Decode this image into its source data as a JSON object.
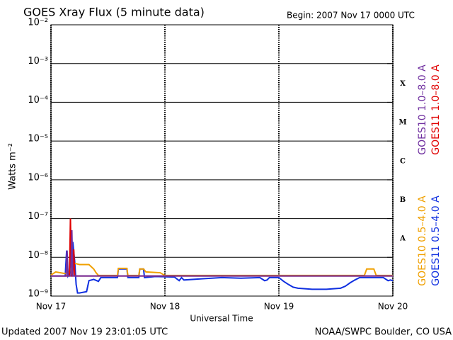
{
  "chart_data": {
    "type": "line",
    "title": "GOES Xray Flux (5 minute data)",
    "subtitle": "Begin:  2007 Nov 17 0000 UTC",
    "x_label": "Universal Time",
    "y_label": "Watts m⁻²",
    "footer_left": "Updated 2007 Nov 19 23:01:05 UTC",
    "footer_right": "NOAA/SWPC Boulder, CO USA",
    "log_y": true,
    "grid": true,
    "xlim": [
      0,
      72
    ],
    "xticks": [
      {
        "value": 0,
        "label": "Nov 17"
      },
      {
        "value": 24,
        "label": "Nov 18"
      },
      {
        "value": 48,
        "label": "Nov 19"
      },
      {
        "value": 72,
        "label": "Nov 20"
      }
    ],
    "ylim": [
      1e-09,
      0.01
    ],
    "yticks": [
      {
        "value": 1e-09,
        "label": "10⁻⁹"
      },
      {
        "value": 1e-08,
        "label": "10⁻⁸"
      },
      {
        "value": 1e-07,
        "label": "10⁻⁷"
      },
      {
        "value": 1e-06,
        "label": "10⁻⁶"
      },
      {
        "value": 1e-05,
        "label": "10⁻⁵"
      },
      {
        "value": 0.0001,
        "label": "10⁻⁴"
      },
      {
        "value": 0.001,
        "label": "10⁻³"
      },
      {
        "value": 0.01,
        "label": "10⁻²"
      }
    ],
    "flare_classes": [
      {
        "label": "X",
        "value": 0.0003
      },
      {
        "label": "M",
        "value": 3e-05
      },
      {
        "label": "C",
        "value": 3e-06
      },
      {
        "label": "B",
        "value": 3e-07
      },
      {
        "label": "A",
        "value": 3e-08
      }
    ],
    "series": [
      {
        "name": "GOES10 1.0–8.0 A",
        "color": "#7030a0",
        "x": [
          0,
          3.2,
          3.4,
          3.6,
          4.2,
          4.4,
          4.6,
          72
        ],
        "values": [
          3.3e-09,
          3.3e-09,
          1.5e-08,
          3.3e-09,
          3.3e-09,
          5e-08,
          3.3e-09,
          3.3e-09
        ]
      },
      {
        "name": "GOES11 1.0–8.0 A",
        "color": "#e00000",
        "x": [
          0,
          3.9,
          4.1,
          4.3,
          4.6,
          4.8,
          5,
          72
        ],
        "values": [
          3.3e-09,
          3.3e-09,
          1e-07,
          3.3e-09,
          3.3e-09,
          1.6e-08,
          3.3e-09,
          3.3e-09
        ]
      },
      {
        "name": "GOES10 0.5–4.0 A",
        "color": "#f0a000",
        "x": [
          0,
          1,
          2,
          3,
          4,
          4.5,
          5,
          6,
          8,
          9,
          9.5,
          10,
          14,
          14.2,
          16,
          16.2,
          18.5,
          18.7,
          19.5,
          20,
          23,
          24,
          66,
          66.5,
          68,
          68.5,
          72
        ],
        "values": [
          3.5e-09,
          4.2e-09,
          4e-09,
          3.8e-09,
          4.5e-09,
          6.5e-09,
          7e-09,
          6.5e-09,
          6.5e-09,
          5e-09,
          4e-09,
          3.4e-09,
          3.4e-09,
          5.2e-09,
          5.2e-09,
          3.4e-09,
          3.4e-09,
          5e-09,
          5e-09,
          4.2e-09,
          4e-09,
          3.4e-09,
          3.4e-09,
          5e-09,
          5e-09,
          3.4e-09,
          3.4e-09
        ]
      },
      {
        "name": "GOES11 0.5–4.0 A",
        "color": "#1030e0",
        "x": [
          0,
          3,
          3.3,
          3.6,
          4,
          4.6,
          5,
          5.3,
          5.6,
          6,
          7.5,
          8,
          9,
          10,
          10.5,
          11,
          14,
          14.2,
          16,
          16.2,
          18.5,
          18.7,
          19.5,
          19.7,
          22,
          26,
          27,
          27.5,
          28,
          32,
          36,
          40,
          44,
          45,
          45.5,
          46,
          48,
          49,
          50,
          51,
          52,
          55,
          58,
          61,
          62,
          63,
          64,
          65,
          68,
          70,
          71,
          71.5,
          72
        ],
        "values": [
          3.3e-09,
          3.3e-09,
          1.5e-08,
          3.3e-09,
          4e-09,
          2.5e-08,
          8e-09,
          2e-09,
          1.2e-09,
          1.2e-09,
          1.3e-09,
          2.5e-09,
          2.7e-09,
          2.4e-09,
          3e-09,
          3e-09,
          3e-09,
          5e-09,
          5e-09,
          3e-09,
          3e-09,
          5e-09,
          5e-09,
          3e-09,
          3.2e-09,
          3.1e-09,
          2.5e-09,
          3e-09,
          2.6e-09,
          2.8e-09,
          3e-09,
          2.9e-09,
          3e-09,
          2.5e-09,
          2.6e-09,
          3e-09,
          3e-09,
          2.4e-09,
          2e-09,
          1.7e-09,
          1.6e-09,
          1.5e-09,
          1.5e-09,
          1.6e-09,
          1.8e-09,
          2.2e-09,
          2.6e-09,
          3e-09,
          3e-09,
          3e-09,
          2.5e-09,
          2.6e-09,
          2.5e-09
        ]
      }
    ]
  }
}
